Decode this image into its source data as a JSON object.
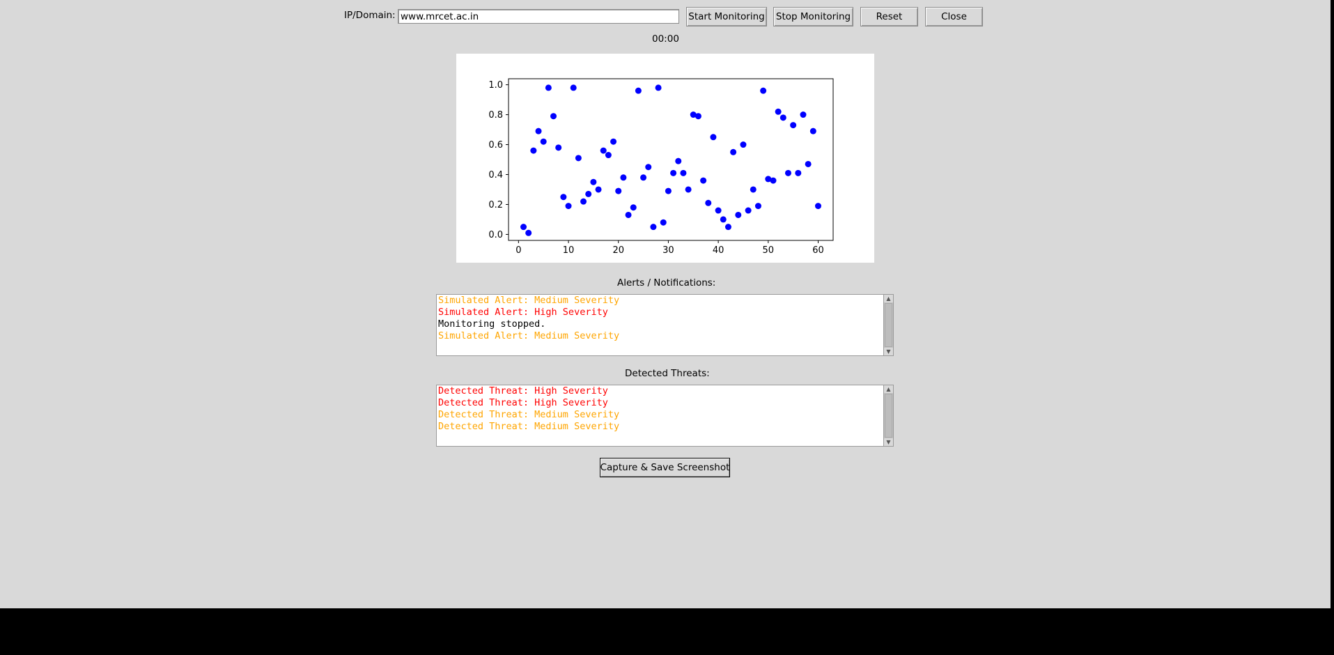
{
  "controls": {
    "ip_label": "IP/Domain:",
    "ip_value": "www.mrcet.ac.in",
    "start_label": "Start Monitoring",
    "stop_label": "Stop Monitoring",
    "reset_label": "Reset",
    "close_label": "Close"
  },
  "timer": "00:00",
  "chart_data": {
    "type": "scatter",
    "color": "#0000ff",
    "xlim": [
      -2,
      63
    ],
    "ylim": [
      -0.04,
      1.04
    ],
    "x_ticks": [
      "0",
      "10",
      "20",
      "30",
      "40",
      "50",
      "60"
    ],
    "y_ticks": [
      "0.0",
      "0.2",
      "0.4",
      "0.6",
      "0.8",
      "1.0"
    ],
    "grid": false,
    "x": [
      1,
      2,
      3,
      4,
      5,
      6,
      7,
      8,
      9,
      10,
      11,
      12,
      13,
      14,
      15,
      16,
      17,
      18,
      19,
      20,
      21,
      22,
      23,
      24,
      25,
      26,
      27,
      28,
      29,
      30,
      31,
      32,
      33,
      34,
      35,
      36,
      37,
      38,
      39,
      40,
      41,
      42,
      43,
      44,
      45,
      46,
      47,
      48,
      49,
      50,
      51,
      52,
      53,
      54,
      55,
      56,
      57,
      58,
      59,
      60
    ],
    "y": [
      0.05,
      0.01,
      0.56,
      0.69,
      0.62,
      0.98,
      0.79,
      0.58,
      0.25,
      0.19,
      0.98,
      0.51,
      0.22,
      0.27,
      0.35,
      0.3,
      0.56,
      0.53,
      0.62,
      0.29,
      0.38,
      0.13,
      0.18,
      0.96,
      0.38,
      0.45,
      0.05,
      0.98,
      0.08,
      0.29,
      0.41,
      0.49,
      0.41,
      0.3,
      0.8,
      0.79,
      0.36,
      0.21,
      0.65,
      0.16,
      0.1,
      0.05,
      0.55,
      0.13,
      0.6,
      0.16,
      0.3,
      0.19,
      0.96,
      0.37,
      0.36,
      0.82,
      0.78,
      0.41,
      0.73,
      0.41,
      0.8,
      0.47,
      0.69,
      0.19
    ]
  },
  "alerts": {
    "label": "Alerts / Notifications:",
    "lines": [
      {
        "text": "Simulated Alert: Medium Severity",
        "color": "#ffa500"
      },
      {
        "text": "Simulated Alert: High Severity",
        "color": "#ff0000"
      },
      {
        "text": "Monitoring stopped.",
        "color": "#000000"
      },
      {
        "text": "Simulated Alert: Medium Severity",
        "color": "#ffa500"
      }
    ]
  },
  "threats": {
    "label": "Detected Threats:",
    "lines": [
      {
        "text": "Detected Threat: High Severity",
        "color": "#ff0000"
      },
      {
        "text": "Detected Threat: High Severity",
        "color": "#ff0000"
      },
      {
        "text": "Detected Threat: Medium Severity",
        "color": "#ffa500"
      },
      {
        "text": "Detected Threat: Medium Severity",
        "color": "#ffa500"
      }
    ]
  },
  "capture_label": "Capture & Save Screenshot"
}
